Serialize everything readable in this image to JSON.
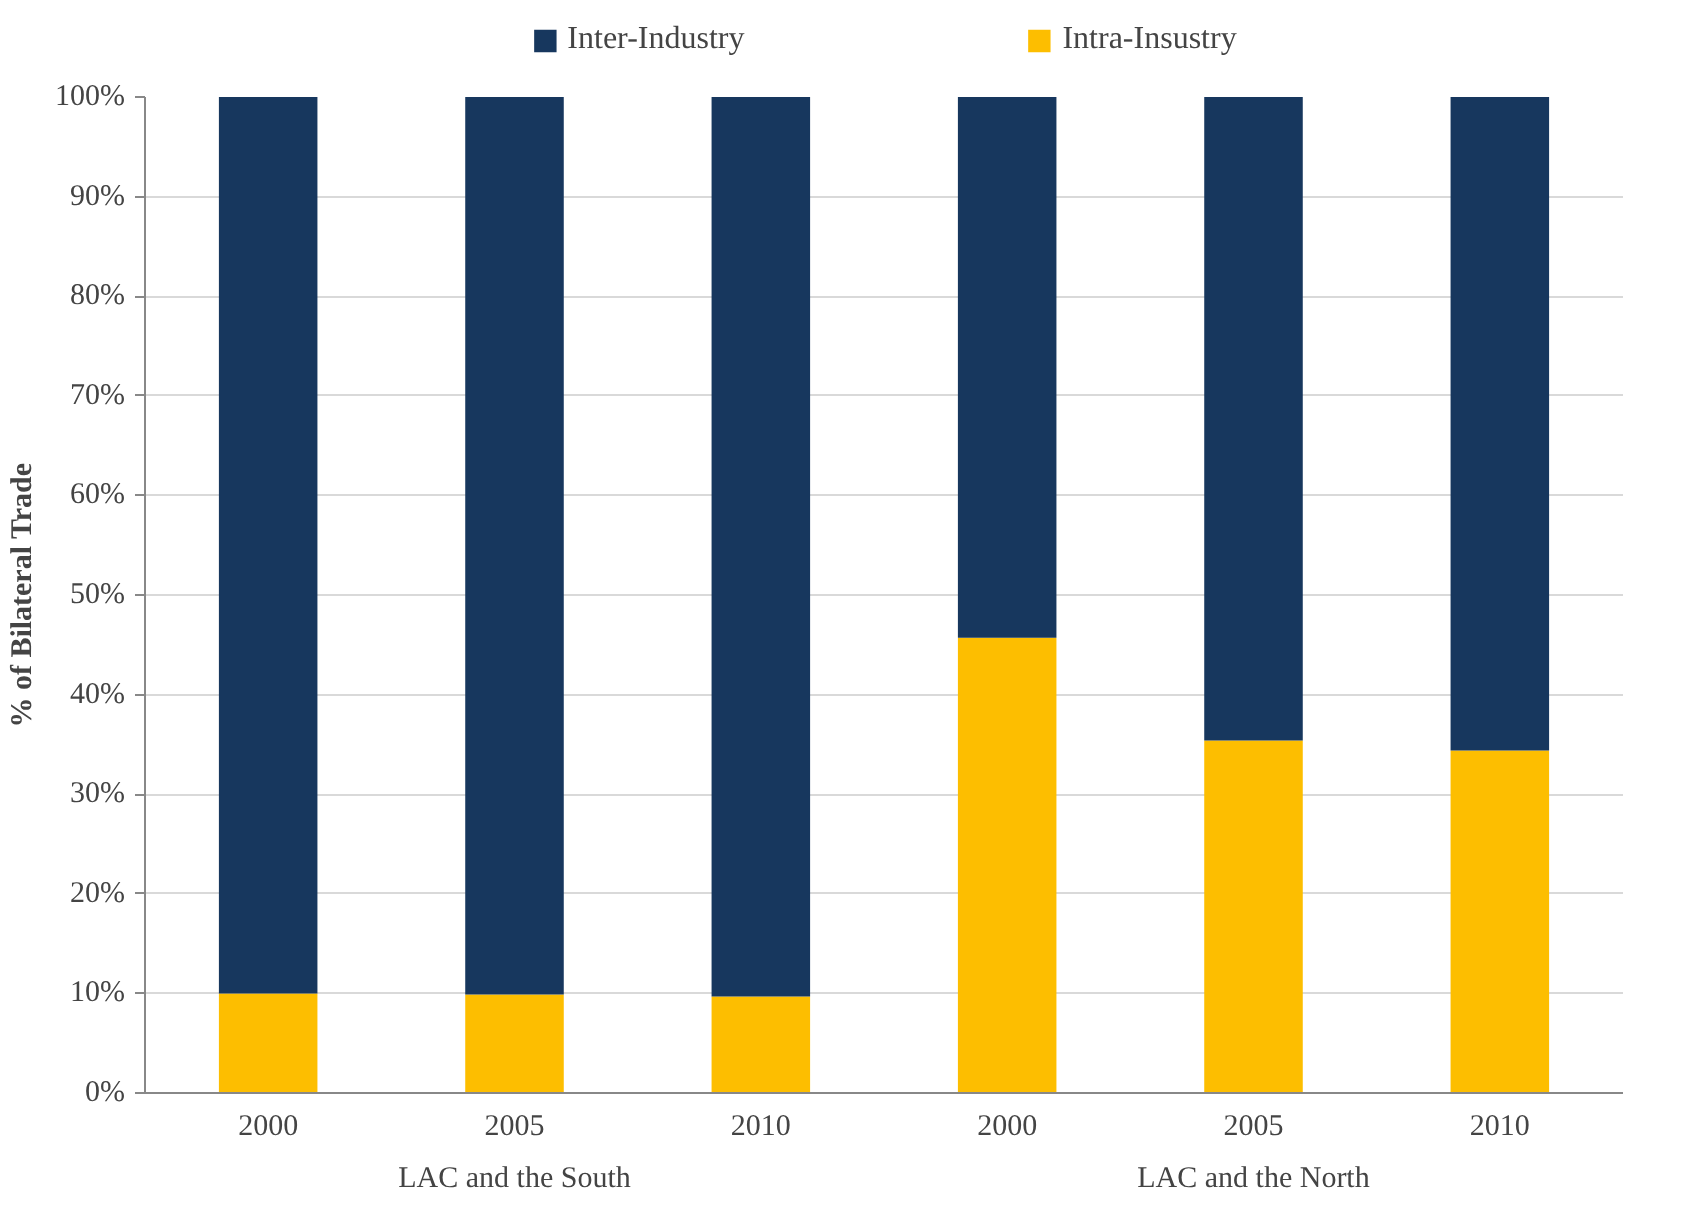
{
  "chart_data": {
    "type": "bar",
    "stacked": true,
    "ylabel": "% of Bilateral Trade",
    "categories": [
      "2000",
      "2005",
      "2010",
      "2000",
      "2005",
      "2010"
    ],
    "series": [
      {
        "name": "Intra-Insustry",
        "color": "#fdbe00",
        "values": [
          10.0,
          9.9,
          9.7,
          45.7,
          35.4,
          34.4
        ]
      },
      {
        "name": "Inter-Industry",
        "color": "#17375e",
        "values": [
          90.0,
          90.1,
          90.3,
          54.3,
          64.6,
          65.6
        ]
      }
    ],
    "ylim": [
      0,
      100
    ],
    "yticks": [
      {
        "value": 0,
        "label": "0%"
      },
      {
        "value": 10,
        "label": "10%"
      },
      {
        "value": 20,
        "label": "20%"
      },
      {
        "value": 30,
        "label": "30%"
      },
      {
        "value": 40,
        "label": "40%"
      },
      {
        "value": 50,
        "label": "50%"
      },
      {
        "value": 60,
        "label": "60%"
      },
      {
        "value": 70,
        "label": "70%"
      },
      {
        "value": 80,
        "label": "80%"
      },
      {
        "value": 90,
        "label": "90%"
      },
      {
        "value": 100,
        "label": "100%"
      }
    ],
    "grid": "y",
    "legend": "top",
    "annotations": [
      "LAC and the South",
      "LAC and the North"
    ]
  }
}
